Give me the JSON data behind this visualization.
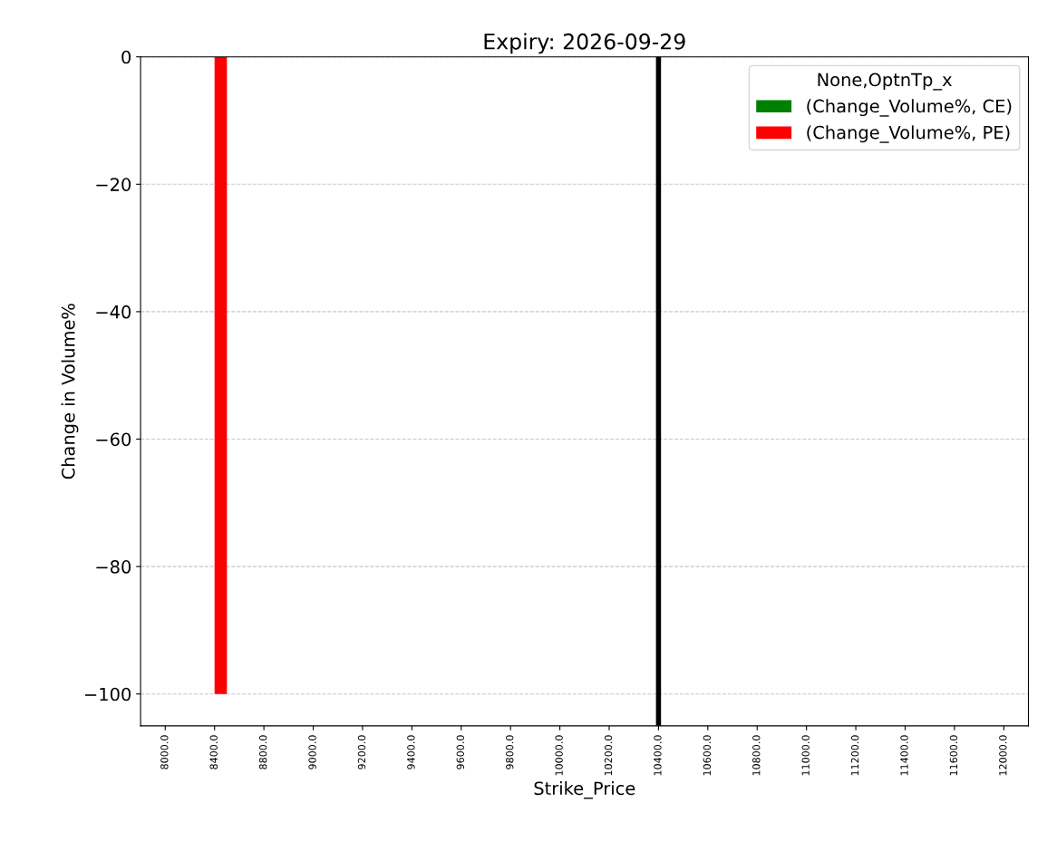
{
  "chart_data": {
    "type": "bar",
    "title": "Expiry: 2026-09-29",
    "xlabel": "Strike_Price",
    "ylabel": "Change in Volume%",
    "legend_title": "None,OptnTp_x",
    "categories": [
      "8000.0",
      "8400.0",
      "8800.0",
      "9000.0",
      "9200.0",
      "9400.0",
      "9600.0",
      "9800.0",
      "10000.0",
      "10200.0",
      "10400.0",
      "10600.0",
      "10800.0",
      "11000.0",
      "11200.0",
      "11400.0",
      "11600.0",
      "12000.0"
    ],
    "series": [
      {
        "name": "(Change_Volume%, CE)",
        "color": "#008000",
        "values": [
          null,
          null,
          null,
          null,
          null,
          null,
          null,
          null,
          null,
          null,
          null,
          null,
          null,
          null,
          null,
          null,
          null,
          null
        ]
      },
      {
        "name": "(Change_Volume%, PE)",
        "color": "#ff0000",
        "values": [
          null,
          -100,
          null,
          null,
          null,
          null,
          null,
          null,
          null,
          null,
          null,
          null,
          null,
          null,
          null,
          null,
          null,
          null
        ]
      }
    ],
    "ylim": [
      -105,
      0
    ],
    "yticks": [
      0,
      -20,
      -40,
      -60,
      -80,
      -100
    ],
    "ref_lines": [
      {
        "axis": "x",
        "value": "10400.0",
        "color": "#000000",
        "line_style": "solid"
      }
    ],
    "grid": "y",
    "legend": "top right"
  }
}
